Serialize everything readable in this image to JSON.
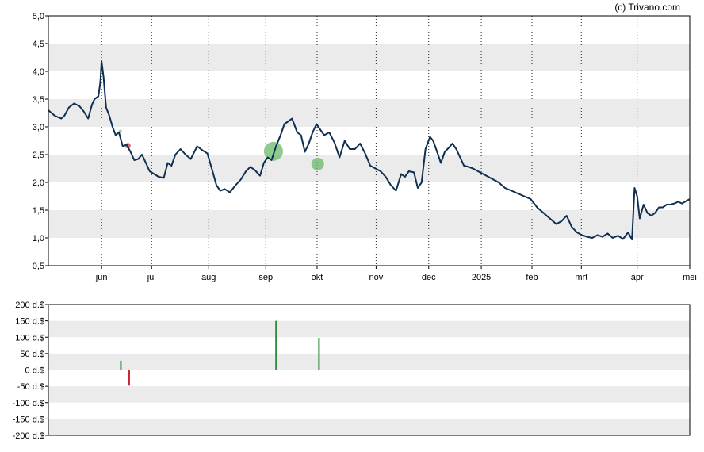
{
  "copyright": "(c) Trivano.com",
  "chart_data": [
    {
      "type": "line",
      "title": "",
      "xlabel": "",
      "ylabel": "",
      "ylim": [
        0.5,
        5.0
      ],
      "ytick_labels": [
        "0,5",
        "1,0",
        "1,5",
        "2,0",
        "2,5",
        "3,0",
        "3,5",
        "4,0",
        "4,5",
        "5,0"
      ],
      "ytick_values": [
        0.5,
        1.0,
        1.5,
        2.0,
        2.5,
        3.0,
        3.5,
        4.0,
        4.5,
        5.0
      ],
      "grid": "alternating horizontal bands, dotted vertical month lines",
      "line_color": "#0e2f50",
      "x_labels": [
        "jun",
        "jul",
        "aug",
        "sep",
        "okt",
        "nov",
        "dec",
        "2025",
        "feb",
        "mrt",
        "apr",
        "mei"
      ],
      "x_label_positions": [
        0.083,
        0.161,
        0.25,
        0.339,
        0.419,
        0.511,
        0.593,
        0.675,
        0.754,
        0.831,
        0.918,
        1.0
      ],
      "series": [
        {
          "x": [
            0.0,
            0.01,
            0.02,
            0.025,
            0.032,
            0.04,
            0.048,
            0.055,
            0.062,
            0.068,
            0.072,
            0.078,
            0.081,
            0.083,
            0.086,
            0.09,
            0.095,
            0.1,
            0.105,
            0.11,
            0.116,
            0.122,
            0.128,
            0.134,
            0.14,
            0.146,
            0.152,
            0.158,
            0.165,
            0.172,
            0.18,
            0.186,
            0.192,
            0.198,
            0.206,
            0.214,
            0.222,
            0.232,
            0.24,
            0.248,
            0.256,
            0.262,
            0.268,
            0.275,
            0.283,
            0.292,
            0.3,
            0.308,
            0.315,
            0.322,
            0.33,
            0.336,
            0.342,
            0.348,
            0.355,
            0.362,
            0.368,
            0.374,
            0.38,
            0.388,
            0.394,
            0.4,
            0.406,
            0.412,
            0.418,
            0.424,
            0.43,
            0.438,
            0.446,
            0.454,
            0.462,
            0.47,
            0.478,
            0.486,
            0.494,
            0.502,
            0.51,
            0.518,
            0.526,
            0.534,
            0.542,
            0.55,
            0.556,
            0.562,
            0.57,
            0.576,
            0.582,
            0.588,
            0.595,
            0.6,
            0.606,
            0.612,
            0.618,
            0.624,
            0.63,
            0.636,
            0.642,
            0.648,
            0.655,
            0.662,
            0.67,
            0.678,
            0.686,
            0.694,
            0.702,
            0.712,
            0.722,
            0.732,
            0.742,
            0.752,
            0.762,
            0.772,
            0.782,
            0.792,
            0.8,
            0.808,
            0.816,
            0.824,
            0.832,
            0.84,
            0.848,
            0.856,
            0.864,
            0.872,
            0.88,
            0.888,
            0.896,
            0.904,
            0.91,
            0.914,
            0.918,
            0.922,
            0.928,
            0.934,
            0.94,
            0.946,
            0.952,
            0.958,
            0.964,
            0.97,
            0.976,
            0.982,
            0.988,
            0.994,
            1.0
          ],
          "values": [
            3.3,
            3.2,
            3.15,
            3.2,
            3.35,
            3.42,
            3.38,
            3.28,
            3.15,
            3.4,
            3.5,
            3.55,
            3.8,
            4.18,
            3.9,
            3.35,
            3.2,
            3.0,
            2.85,
            2.9,
            2.65,
            2.68,
            2.55,
            2.4,
            2.42,
            2.5,
            2.35,
            2.2,
            2.15,
            2.1,
            2.08,
            2.35,
            2.3,
            2.5,
            2.6,
            2.5,
            2.42,
            2.65,
            2.58,
            2.52,
            2.2,
            1.95,
            1.85,
            1.88,
            1.82,
            1.95,
            2.05,
            2.2,
            2.28,
            2.22,
            2.12,
            2.35,
            2.45,
            2.4,
            2.65,
            2.85,
            3.05,
            3.1,
            3.15,
            2.9,
            2.85,
            2.55,
            2.7,
            2.9,
            3.05,
            2.95,
            2.85,
            2.9,
            2.72,
            2.45,
            2.75,
            2.6,
            2.6,
            2.7,
            2.52,
            2.3,
            2.25,
            2.2,
            2.1,
            1.95,
            1.85,
            2.15,
            2.1,
            2.2,
            2.18,
            1.9,
            2.0,
            2.6,
            2.82,
            2.75,
            2.55,
            2.35,
            2.55,
            2.62,
            2.7,
            2.6,
            2.45,
            2.3,
            2.28,
            2.25,
            2.2,
            2.15,
            2.1,
            2.05,
            2.0,
            1.9,
            1.85,
            1.8,
            1.75,
            1.7,
            1.55,
            1.45,
            1.35,
            1.25,
            1.3,
            1.4,
            1.2,
            1.1,
            1.05,
            1.02,
            1.0,
            1.05,
            1.02,
            1.08,
            1.0,
            1.04,
            0.98,
            1.1,
            0.97,
            1.9,
            1.75,
            1.35,
            1.6,
            1.45,
            1.4,
            1.45,
            1.55,
            1.55,
            1.6,
            1.6,
            1.62,
            1.65,
            1.62,
            1.66,
            1.7
          ]
        }
      ],
      "markers": [
        {
          "x": 0.124,
          "y": 2.66,
          "color": "#cc3344",
          "size": "small"
        },
        {
          "x": 0.112,
          "y": 2.92,
          "color": "#6ab86a",
          "size": "tiny"
        },
        {
          "x": 0.351,
          "y": 2.56,
          "color": "#6ab86a",
          "size": "large"
        },
        {
          "x": 0.42,
          "y": 2.33,
          "color": "#6ab86a",
          "size": "medium"
        }
      ]
    },
    {
      "type": "bar",
      "title": "",
      "xlabel": "",
      "ylabel": "",
      "ylim": [
        -200,
        200
      ],
      "ytick_labels": [
        "200 d.$",
        "150 d.$",
        "100 d.$",
        "50 d.$",
        "0 d.$",
        "-50 d.$",
        "-100 d.$",
        "-150 d.$",
        "-200 d.$"
      ],
      "ytick_values": [
        200,
        150,
        100,
        50,
        0,
        -50,
        -100,
        -150,
        -200
      ],
      "grid": "alternating horizontal bands",
      "x_positions": [
        0.113,
        0.126,
        0.355,
        0.422
      ],
      "values": [
        28,
        -48,
        150,
        98
      ],
      "colors": [
        "#2e8b3a",
        "#cc2233",
        "#2e8b3a",
        "#2e8b3a"
      ]
    }
  ]
}
